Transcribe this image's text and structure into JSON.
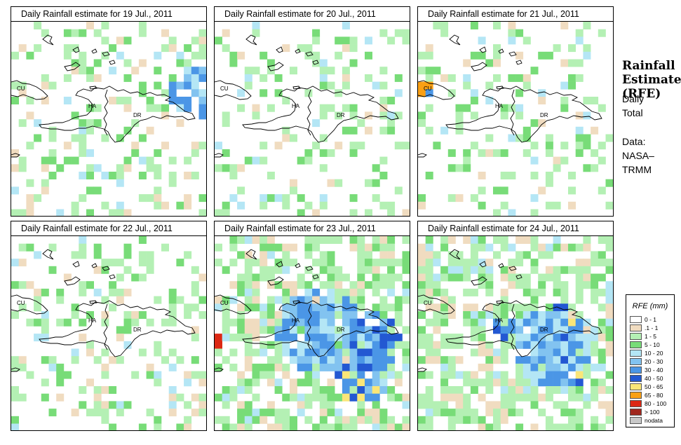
{
  "sidebar": {
    "title_lines": [
      "Rainfall",
      "Estimate",
      "(RFE)"
    ],
    "period_lines": [
      "Daily",
      "Total"
    ],
    "source_lines": [
      "Data:",
      "NASA–",
      "TRMM"
    ]
  },
  "map_labels": {
    "cuba": "CU",
    "haiti": "HA",
    "dominican_republic": "DR"
  },
  "panels": [
    {
      "title": "Daily Rainfall estimate for  19 Jul., 2011"
    },
    {
      "title": "Daily Rainfall estimate for  20 Jul., 2011"
    },
    {
      "title": "Daily Rainfall estimate for  21 Jul., 2011"
    },
    {
      "title": "Daily Rainfall estimate for  22 Jul., 2011"
    },
    {
      "title": "Daily Rainfall estimate for  23 Jul., 2011"
    },
    {
      "title": "Daily Rainfall estimate for  24 Jul., 2011"
    }
  ],
  "legend": {
    "title": "RFE (mm)",
    "classes": [
      {
        "label": "0 - 1",
        "color": "#ffffff"
      },
      {
        "label": ".1 - 1",
        "color": "#f0dcc0"
      },
      {
        "label": "1 - 5",
        "color": "#b4f0b4"
      },
      {
        "label": "5 - 10",
        "color": "#78dc78"
      },
      {
        "label": "10 - 20",
        "color": "#b4e6f5"
      },
      {
        "label": "20 - 30",
        "color": "#82c3f0"
      },
      {
        "label": "30 - 40",
        "color": "#4b96e6"
      },
      {
        "label": "40 - 50",
        "color": "#2358d2"
      },
      {
        "label": "50 - 65",
        "color": "#fae678"
      },
      {
        "label": "65 - 80",
        "color": "#faa014"
      },
      {
        "label": "80 - 100",
        "color": "#dc2814"
      },
      {
        "label": "> 100",
        "color": "#a0281e"
      },
      {
        "label": "nodata",
        "color": "#c8c8c8"
      }
    ]
  }
}
